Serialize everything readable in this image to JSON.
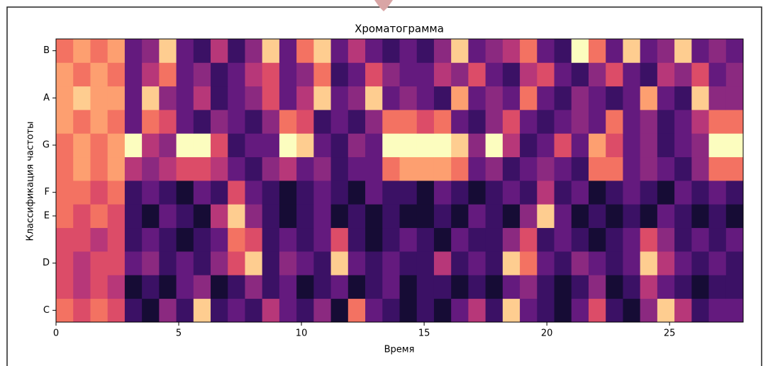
{
  "chart_data": {
    "type": "heatmap",
    "title": "Хроматограмма",
    "x_label": "Время",
    "y_label": "Классификация частоты",
    "colormap": "magma",
    "clim": [
      0,
      1
    ],
    "xlim": [
      0,
      28
    ],
    "xticks": [
      0,
      5,
      10,
      15,
      20,
      25
    ],
    "x_edges": [
      0,
      0.7,
      1.4,
      2.1,
      2.8,
      3.5,
      4.2,
      4.9,
      5.6,
      6.3,
      7,
      7.7,
      8.4,
      9.1,
      9.8,
      10.5,
      11.2,
      11.9,
      12.6,
      13.3,
      14,
      14.7,
      15.4,
      16.1,
      16.8,
      17.5,
      18.2,
      18.9,
      19.6,
      20.3,
      21,
      21.7,
      22.4,
      23.1,
      23.8,
      24.5,
      25.2,
      25.9,
      26.6,
      27.3,
      28
    ],
    "categories": [
      "C",
      null,
      "D",
      null,
      "E",
      "F",
      null,
      "G",
      null,
      "A",
      null,
      "B"
    ],
    "values": [
      [
        0.7,
        0.6,
        0.7,
        0.6,
        0.2,
        0.1,
        0.4,
        0.2,
        0.9,
        0.2,
        0.3,
        0.2,
        0.5,
        0.3,
        0.2,
        0.4,
        0.1,
        0.7,
        0.3,
        0.2,
        0.1,
        0.2,
        0.1,
        0.3,
        0.5,
        0.2,
        0.9,
        0.3,
        0.2,
        0.1,
        0.3,
        0.6,
        0.2,
        0.1,
        0.4,
        0.9,
        0.5,
        0.2,
        0.3,
        0.3
      ],
      [
        0.6,
        0.5,
        0.6,
        0.5,
        0.1,
        0.2,
        0.1,
        0.3,
        0.4,
        0.1,
        0.2,
        0.4,
        0.2,
        0.3,
        0.1,
        0.2,
        0.3,
        0.1,
        0.2,
        0.3,
        0.1,
        0.2,
        0.2,
        0.1,
        0.2,
        0.1,
        0.3,
        0.4,
        0.2,
        0.1,
        0.2,
        0.4,
        0.1,
        0.2,
        0.5,
        0.3,
        0.2,
        0.1,
        0.2,
        0.2
      ],
      [
        0.6,
        0.5,
        0.6,
        0.6,
        0.3,
        0.4,
        0.2,
        0.3,
        0.2,
        0.4,
        0.6,
        0.9,
        0.2,
        0.4,
        0.3,
        0.2,
        0.9,
        0.3,
        0.2,
        0.3,
        0.2,
        0.2,
        0.5,
        0.2,
        0.3,
        0.2,
        0.9,
        0.7,
        0.3,
        0.2,
        0.4,
        0.3,
        0.2,
        0.3,
        0.9,
        0.5,
        0.3,
        0.2,
        0.3,
        0.2
      ],
      [
        0.6,
        0.6,
        0.5,
        0.6,
        0.2,
        0.3,
        0.2,
        0.1,
        0.2,
        0.3,
        0.7,
        0.6,
        0.2,
        0.3,
        0.2,
        0.3,
        0.6,
        0.2,
        0.1,
        0.2,
        0.3,
        0.2,
        0.1,
        0.3,
        0.2,
        0.2,
        0.4,
        0.6,
        0.2,
        0.3,
        0.2,
        0.1,
        0.2,
        0.3,
        0.6,
        0.4,
        0.2,
        0.3,
        0.2,
        0.3
      ],
      [
        0.7,
        0.6,
        0.7,
        0.6,
        0.2,
        0.1,
        0.3,
        0.2,
        0.1,
        0.5,
        0.9,
        0.4,
        0.2,
        0.1,
        0.2,
        0.3,
        0.1,
        0.2,
        0.1,
        0.2,
        0.1,
        0.1,
        0.2,
        0.1,
        0.3,
        0.2,
        0.1,
        0.4,
        0.9,
        0.3,
        0.1,
        0.2,
        0.1,
        0.2,
        0.1,
        0.3,
        0.2,
        0.1,
        0.2,
        0.1
      ],
      [
        0.7,
        0.7,
        0.6,
        0.7,
        0.2,
        0.3,
        0.2,
        0.1,
        0.3,
        0.2,
        0.6,
        0.3,
        0.2,
        0.1,
        0.2,
        0.3,
        0.2,
        0.1,
        0.3,
        0.2,
        0.2,
        0.1,
        0.3,
        0.2,
        0.1,
        0.2,
        0.3,
        0.2,
        0.5,
        0.2,
        0.3,
        0.1,
        0.2,
        0.3,
        0.2,
        0.1,
        0.3,
        0.2,
        0.3,
        0.2
      ],
      [
        0.7,
        0.8,
        0.7,
        0.8,
        0.5,
        0.4,
        0.5,
        0.6,
        0.6,
        0.5,
        0.3,
        0.2,
        0.4,
        0.5,
        0.3,
        0.4,
        0.2,
        0.3,
        0.3,
        0.7,
        0.8,
        0.8,
        0.8,
        0.7,
        0.3,
        0.4,
        0.2,
        0.3,
        0.4,
        0.3,
        0.2,
        0.7,
        0.7,
        0.3,
        0.4,
        0.3,
        0.2,
        0.4,
        0.7,
        0.7
      ],
      [
        0.7,
        0.8,
        0.7,
        0.8,
        1.0,
        0.5,
        0.4,
        1.0,
        1.0,
        0.6,
        0.2,
        0.3,
        0.3,
        1.0,
        0.9,
        0.3,
        0.2,
        0.4,
        0.3,
        1.0,
        1.0,
        1.0,
        1.0,
        0.9,
        0.4,
        1.0,
        0.5,
        0.2,
        0.3,
        0.6,
        0.3,
        0.8,
        0.6,
        0.3,
        0.4,
        0.2,
        0.3,
        0.4,
        1.0,
        1.0
      ],
      [
        0.8,
        0.7,
        0.8,
        0.7,
        0.3,
        0.7,
        0.6,
        0.3,
        0.2,
        0.4,
        0.3,
        0.2,
        0.4,
        0.7,
        0.6,
        0.2,
        0.3,
        0.2,
        0.4,
        0.7,
        0.7,
        0.6,
        0.7,
        0.3,
        0.2,
        0.4,
        0.6,
        0.3,
        0.2,
        0.3,
        0.4,
        0.3,
        0.7,
        0.3,
        0.4,
        0.2,
        0.3,
        0.5,
        0.7,
        0.7
      ],
      [
        0.8,
        0.9,
        0.8,
        0.8,
        0.3,
        0.9,
        0.4,
        0.3,
        0.5,
        0.2,
        0.3,
        0.4,
        0.6,
        0.3,
        0.5,
        0.9,
        0.3,
        0.4,
        0.9,
        0.3,
        0.4,
        0.3,
        0.2,
        0.8,
        0.3,
        0.4,
        0.3,
        0.7,
        0.3,
        0.2,
        0.4,
        0.3,
        0.2,
        0.3,
        0.8,
        0.3,
        0.2,
        0.9,
        0.4,
        0.4
      ],
      [
        0.8,
        0.7,
        0.8,
        0.7,
        0.3,
        0.5,
        0.7,
        0.3,
        0.4,
        0.2,
        0.3,
        0.5,
        0.6,
        0.3,
        0.4,
        0.7,
        0.2,
        0.3,
        0.6,
        0.4,
        0.3,
        0.3,
        0.5,
        0.4,
        0.6,
        0.3,
        0.2,
        0.5,
        0.6,
        0.3,
        0.2,
        0.4,
        0.6,
        0.3,
        0.2,
        0.5,
        0.4,
        0.6,
        0.3,
        0.4
      ],
      [
        0.7,
        0.8,
        0.7,
        0.8,
        0.3,
        0.4,
        0.9,
        0.3,
        0.2,
        0.5,
        0.2,
        0.4,
        0.9,
        0.3,
        0.7,
        0.9,
        0.3,
        0.5,
        0.3,
        0.2,
        0.3,
        0.2,
        0.4,
        0.9,
        0.3,
        0.4,
        0.5,
        0.7,
        0.3,
        0.2,
        1.0,
        0.7,
        0.3,
        0.9,
        0.3,
        0.4,
        0.9,
        0.3,
        0.4,
        0.3
      ]
    ]
  }
}
